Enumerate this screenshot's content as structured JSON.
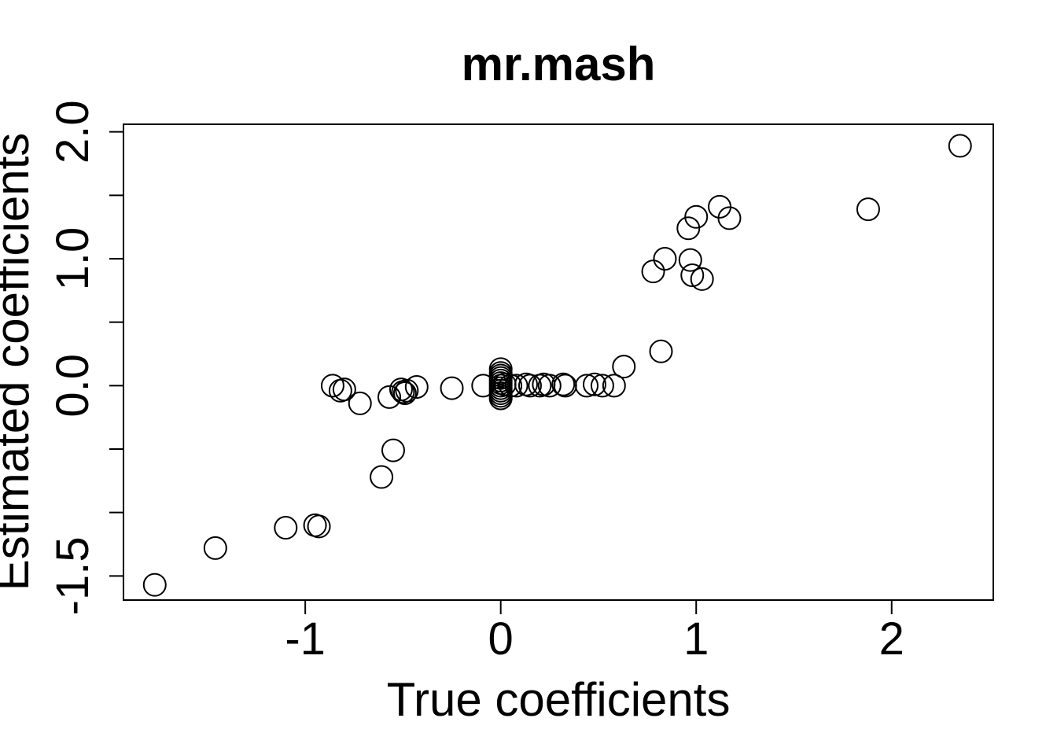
{
  "chart_data": {
    "type": "scatter",
    "title": "mr.mash",
    "xlabel": "True coefficients",
    "ylabel": "Estimated coefficients",
    "xlim": [
      -1.93,
      2.52
    ],
    "ylim": [
      -1.69,
      2.06
    ],
    "x_ticks": [
      -2,
      -1,
      0,
      1,
      2
    ],
    "x_tick_labels": [
      "",
      "-1",
      "0",
      "1",
      "2"
    ],
    "y_ticks": [
      -1.5,
      -1.0,
      -0.5,
      0.0,
      0.5,
      1.0,
      1.5,
      2.0
    ],
    "y_tick_labels": [
      "-1.5",
      "",
      "",
      "0.0",
      "",
      "1.0",
      "",
      "2.0"
    ],
    "marker": "open-circle",
    "series": [
      {
        "name": "coefficients",
        "points": [
          [
            -1.77,
            -1.57
          ],
          [
            -1.46,
            -1.28
          ],
          [
            -1.1,
            -1.12
          ],
          [
            -0.95,
            -1.1
          ],
          [
            -0.93,
            -1.11
          ],
          [
            -0.61,
            -0.72
          ],
          [
            -0.55,
            -0.51
          ],
          [
            -0.86,
            0.0
          ],
          [
            -0.82,
            -0.04
          ],
          [
            -0.8,
            -0.03
          ],
          [
            -0.72,
            -0.14
          ],
          [
            -0.57,
            -0.09
          ],
          [
            -0.51,
            -0.03
          ],
          [
            -0.5,
            -0.05
          ],
          [
            -0.49,
            -0.06
          ],
          [
            -0.48,
            -0.04
          ],
          [
            -0.43,
            -0.01
          ],
          [
            -0.25,
            -0.02
          ],
          [
            -0.09,
            0.0
          ],
          [
            0.0,
            0.13
          ],
          [
            0.0,
            0.1
          ],
          [
            0.0,
            0.08
          ],
          [
            0.0,
            0.06
          ],
          [
            0.0,
            0.04
          ],
          [
            0.0,
            0.02
          ],
          [
            0.0,
            0.0
          ],
          [
            0.0,
            -0.02
          ],
          [
            0.0,
            -0.04
          ],
          [
            0.0,
            -0.06
          ],
          [
            0.0,
            -0.08
          ],
          [
            0.0,
            -0.1
          ],
          [
            0.02,
            0.01
          ],
          [
            0.05,
            0.0
          ],
          [
            0.08,
            0.0
          ],
          [
            0.13,
            0.01
          ],
          [
            0.15,
            0.0
          ],
          [
            0.2,
            0.0
          ],
          [
            0.22,
            0.01
          ],
          [
            0.25,
            0.0
          ],
          [
            0.32,
            0.01
          ],
          [
            0.33,
            0.0
          ],
          [
            0.44,
            0.0
          ],
          [
            0.48,
            0.01
          ],
          [
            0.52,
            0.0
          ],
          [
            0.58,
            0.0
          ],
          [
            0.63,
            0.15
          ],
          [
            0.78,
            0.9
          ],
          [
            0.82,
            0.27
          ],
          [
            0.84,
            1.0
          ],
          [
            0.96,
            1.24
          ],
          [
            0.97,
            0.99
          ],
          [
            0.98,
            0.87
          ],
          [
            1.0,
            1.33
          ],
          [
            1.03,
            0.84
          ],
          [
            1.12,
            1.41
          ],
          [
            1.17,
            1.32
          ],
          [
            1.88,
            1.39
          ],
          [
            2.35,
            1.89
          ]
        ]
      }
    ]
  }
}
